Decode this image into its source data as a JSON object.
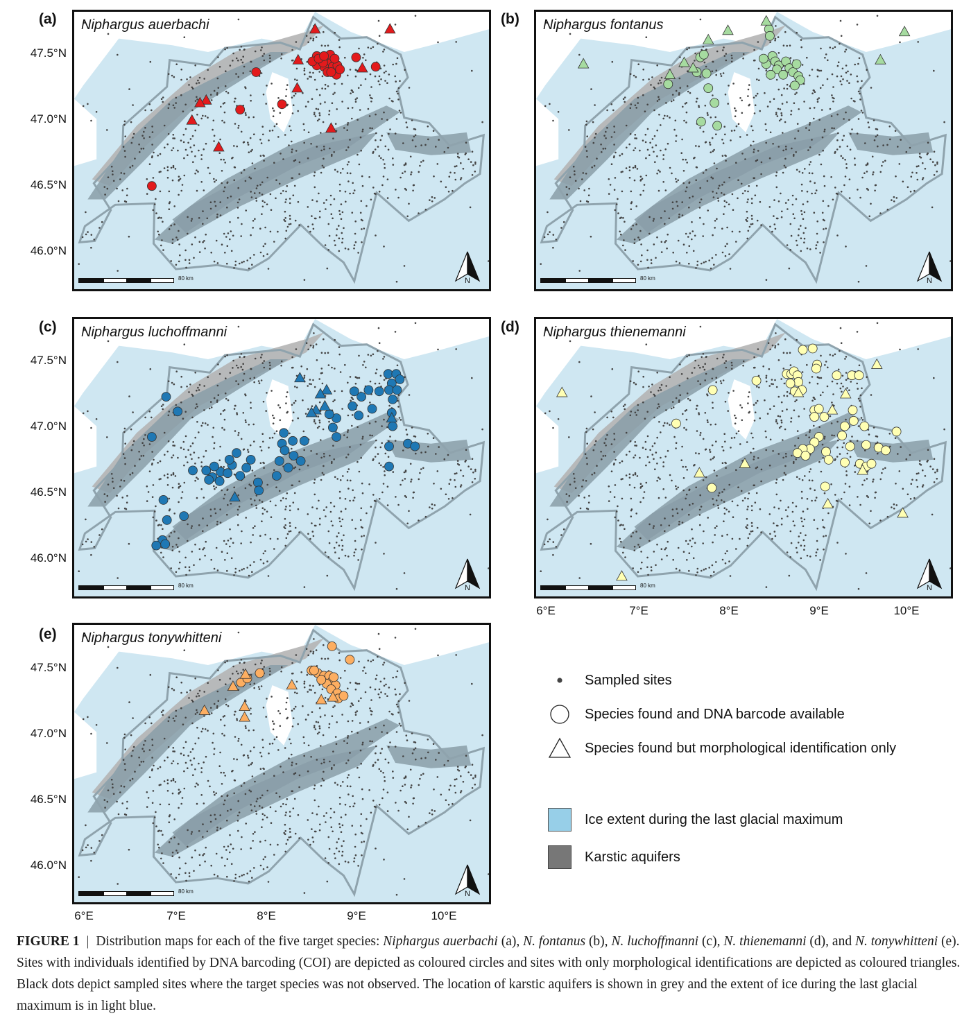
{
  "figure": {
    "latitude_labels": [
      "47.5°N",
      "47.0°N",
      "46.5°N",
      "46.0°N"
    ],
    "longitude_labels": [
      "6°E",
      "7°E",
      "8°E",
      "9°E",
      "10°E"
    ],
    "scale_bar_label": "80 km",
    "north_label": "N",
    "colors": {
      "ice": "#cfe7f2",
      "karst": "#8a9ea8",
      "karst_north": "#b4b4b4",
      "border": "#8fa3ad",
      "sampled": "#444444",
      "auerbachi": "#e31a1c",
      "fontanus": "#a6dba0",
      "luchoffmanni": "#1f78b4",
      "thienemanni": "#ffffb3",
      "tonywhitteni": "#fdae61"
    },
    "panels": [
      {
        "label": "(a)",
        "species": "Niphargus auerbachi",
        "color_key": "auerbachi",
        "circles": [
          [
            8.62,
            47.52
          ],
          [
            8.67,
            47.5
          ],
          [
            8.72,
            47.48
          ],
          [
            8.75,
            47.5
          ],
          [
            8.78,
            47.47
          ],
          [
            8.7,
            47.44
          ],
          [
            8.8,
            47.44
          ],
          [
            8.74,
            47.4
          ],
          [
            8.84,
            47.38
          ],
          [
            8.62,
            47.45
          ],
          [
            8.57,
            47.48
          ],
          [
            8.85,
            47.45
          ],
          [
            8.69,
            47.47
          ],
          [
            8.77,
            47.53
          ],
          [
            8.82,
            47.5
          ],
          [
            8.64,
            47.5
          ],
          [
            8.88,
            47.42
          ],
          [
            8.78,
            47.4
          ],
          [
            8.7,
            47.52
          ],
          [
            9.06,
            47.51
          ],
          [
            9.28,
            47.44
          ],
          [
            7.94,
            47.4
          ],
          [
            8.23,
            47.16
          ],
          [
            7.76,
            47.12
          ],
          [
            6.77,
            46.55
          ]
        ],
        "triangles": [
          [
            8.6,
            47.72
          ],
          [
            9.44,
            47.72
          ],
          [
            8.41,
            47.49
          ],
          [
            9.13,
            47.43
          ],
          [
            8.4,
            47.28
          ],
          [
            7.38,
            47.19
          ],
          [
            7.22,
            47.04
          ],
          [
            7.31,
            47.17
          ],
          [
            7.52,
            46.84
          ],
          [
            8.78,
            46.98
          ]
        ]
      },
      {
        "label": "(b)",
        "species": "Niphargus fontanus",
        "color_key": "fontanus",
        "circles": [
          [
            8.51,
            47.72
          ],
          [
            8.52,
            47.67
          ],
          [
            8.55,
            47.52
          ],
          [
            8.58,
            47.48
          ],
          [
            8.62,
            47.45
          ],
          [
            8.6,
            47.42
          ],
          [
            8.67,
            47.38
          ],
          [
            8.7,
            47.48
          ],
          [
            8.74,
            47.43
          ],
          [
            8.78,
            47.4
          ],
          [
            8.82,
            47.46
          ],
          [
            8.84,
            47.37
          ],
          [
            8.86,
            47.34
          ],
          [
            8.8,
            47.3
          ],
          [
            8.48,
            47.46
          ],
          [
            8.45,
            47.5
          ],
          [
            8.53,
            47.38
          ],
          [
            7.74,
            47.51
          ],
          [
            7.78,
            47.53
          ],
          [
            7.7,
            47.4
          ],
          [
            7.81,
            47.39
          ],
          [
            7.83,
            47.28
          ],
          [
            7.38,
            47.31
          ],
          [
            7.9,
            47.17
          ],
          [
            7.75,
            47.03
          ],
          [
            7.93,
            47.0
          ]
        ],
        "triangles": [
          [
            8.48,
            47.78
          ],
          [
            6.43,
            47.46
          ],
          [
            7.83,
            47.64
          ],
          [
            8.05,
            47.71
          ],
          [
            10.03,
            47.7
          ],
          [
            9.76,
            47.49
          ],
          [
            7.56,
            47.47
          ],
          [
            7.66,
            47.43
          ],
          [
            7.4,
            47.38
          ]
        ]
      },
      {
        "label": "(c)",
        "species": "Niphargus luchoffmanni",
        "color_key": "luchoffmanni",
        "circles": [
          [
            9.42,
            47.44
          ],
          [
            9.51,
            47.44
          ],
          [
            9.55,
            47.4
          ],
          [
            9.46,
            47.37
          ],
          [
            9.43,
            47.32
          ],
          [
            9.52,
            47.32
          ],
          [
            9.47,
            47.25
          ],
          [
            9.32,
            47.31
          ],
          [
            9.2,
            47.32
          ],
          [
            9.04,
            47.31
          ],
          [
            9.12,
            47.27
          ],
          [
            9.02,
            47.2
          ],
          [
            9.09,
            47.13
          ],
          [
            9.24,
            47.18
          ],
          [
            9.46,
            47.15
          ],
          [
            9.47,
            47.05
          ],
          [
            8.84,
            47.11
          ],
          [
            8.76,
            47.14
          ],
          [
            8.8,
            47.04
          ],
          [
            8.84,
            46.97
          ],
          [
            8.48,
            46.94
          ],
          [
            8.35,
            46.94
          ],
          [
            8.36,
            46.83
          ],
          [
            8.44,
            46.79
          ],
          [
            8.25,
            47.0
          ],
          [
            8.23,
            46.92
          ],
          [
            8.26,
            46.87
          ],
          [
            8.2,
            46.79
          ],
          [
            8.3,
            46.74
          ],
          [
            8.17,
            46.68
          ],
          [
            7.88,
            46.8
          ],
          [
            7.83,
            46.74
          ],
          [
            7.76,
            46.68
          ],
          [
            7.67,
            46.76
          ],
          [
            7.72,
            46.85
          ],
          [
            7.64,
            46.8
          ],
          [
            7.54,
            46.71
          ],
          [
            7.45,
            46.67
          ],
          [
            7.38,
            46.72
          ],
          [
            7.41,
            46.65
          ],
          [
            7.53,
            46.64
          ],
          [
            7.62,
            46.7
          ],
          [
            7.96,
            46.63
          ],
          [
            7.97,
            46.57
          ],
          [
            7.23,
            46.72
          ],
          [
            7.47,
            46.75
          ],
          [
            6.93,
            47.27
          ],
          [
            7.06,
            47.16
          ],
          [
            6.77,
            46.97
          ],
          [
            6.9,
            46.5
          ],
          [
            6.94,
            46.35
          ],
          [
            7.13,
            46.38
          ],
          [
            6.89,
            46.2
          ],
          [
            6.92,
            46.17
          ],
          [
            6.82,
            46.16
          ],
          [
            9.64,
            46.92
          ],
          [
            9.72,
            46.9
          ],
          [
            9.43,
            46.9
          ],
          [
            9.43,
            46.75
          ]
        ],
        "triangles": [
          [
            8.43,
            47.41
          ],
          [
            8.73,
            47.32
          ],
          [
            8.66,
            47.29
          ],
          [
            8.71,
            47.2
          ],
          [
            8.61,
            47.17
          ],
          [
            8.56,
            47.15
          ],
          [
            9.46,
            47.11
          ],
          [
            7.7,
            46.52
          ]
        ]
      },
      {
        "label": "(d)",
        "species": "Niphargus thienemanni",
        "color_key": "thienemanni",
        "circles": [
          [
            8.89,
            47.62
          ],
          [
            9.0,
            47.63
          ],
          [
            9.05,
            47.51
          ],
          [
            9.04,
            47.48
          ],
          [
            8.71,
            47.44
          ],
          [
            8.76,
            47.44
          ],
          [
            8.79,
            47.46
          ],
          [
            8.83,
            47.43
          ],
          [
            8.84,
            47.38
          ],
          [
            8.75,
            47.37
          ],
          [
            8.88,
            47.32
          ],
          [
            8.8,
            47.31
          ],
          [
            9.27,
            47.43
          ],
          [
            9.44,
            47.43
          ],
          [
            9.52,
            47.43
          ],
          [
            9.02,
            47.17
          ],
          [
            9.07,
            47.18
          ],
          [
            9.13,
            47.12
          ],
          [
            9.02,
            47.12
          ],
          [
            9.45,
            47.17
          ],
          [
            9.46,
            47.09
          ],
          [
            9.36,
            47.05
          ],
          [
            9.58,
            47.05
          ],
          [
            9.94,
            47.01
          ],
          [
            9.33,
            46.98
          ],
          [
            9.07,
            46.97
          ],
          [
            9.02,
            46.93
          ],
          [
            8.97,
            46.88
          ],
          [
            8.89,
            46.88
          ],
          [
            8.83,
            46.85
          ],
          [
            8.92,
            46.83
          ],
          [
            9.15,
            46.86
          ],
          [
            9.42,
            46.9
          ],
          [
            9.6,
            46.91
          ],
          [
            9.74,
            46.89
          ],
          [
            9.82,
            46.87
          ],
          [
            9.18,
            46.8
          ],
          [
            9.36,
            46.78
          ],
          [
            9.53,
            46.77
          ],
          [
            9.6,
            46.75
          ],
          [
            9.66,
            46.77
          ],
          [
            9.14,
            46.6
          ],
          [
            7.47,
            47.07
          ],
          [
            7.88,
            47.32
          ],
          [
            8.37,
            47.39
          ],
          [
            7.87,
            46.59
          ]
        ],
        "triangles": [
          [
            6.19,
            47.3
          ],
          [
            8.84,
            47.3
          ],
          [
            9.22,
            47.17
          ],
          [
            9.37,
            47.29
          ],
          [
            9.72,
            47.51
          ],
          [
            9.56,
            46.72
          ],
          [
            9.17,
            46.47
          ],
          [
            10.01,
            46.4
          ],
          [
            8.24,
            46.77
          ],
          [
            7.73,
            46.7
          ],
          [
            6.86,
            45.93
          ]
        ]
      },
      {
        "label": "(e)",
        "species": "Niphargus tonywhitteni",
        "color_key": "tonywhitteni",
        "circles": [
          [
            8.79,
            47.69
          ],
          [
            8.99,
            47.59
          ],
          [
            8.56,
            47.51
          ],
          [
            8.63,
            47.49
          ],
          [
            8.7,
            47.47
          ],
          [
            8.76,
            47.47
          ],
          [
            8.79,
            47.43
          ],
          [
            8.73,
            47.41
          ],
          [
            8.83,
            47.4
          ],
          [
            8.78,
            47.37
          ],
          [
            8.85,
            47.34
          ],
          [
            8.86,
            47.3
          ],
          [
            8.92,
            47.32
          ],
          [
            8.81,
            47.46
          ],
          [
            8.67,
            47.44
          ],
          [
            8.59,
            47.51
          ],
          [
            7.98,
            47.49
          ],
          [
            7.77,
            47.42
          ],
          [
            7.84,
            47.45
          ]
        ],
        "triangles": [
          [
            8.34,
            47.4
          ],
          [
            8.67,
            47.29
          ],
          [
            8.8,
            47.31
          ],
          [
            7.82,
            47.48
          ],
          [
            7.68,
            47.39
          ],
          [
            7.81,
            47.24
          ],
          [
            7.81,
            47.16
          ],
          [
            7.36,
            47.21
          ]
        ]
      }
    ]
  },
  "legend": {
    "sampled_sites": "Sampled sites",
    "circle": "Species found and DNA barcode available",
    "triangle": "Species found but morphological identification only",
    "ice": "Ice extent during the last glacial maximum",
    "karst": "Karstic aquifers"
  },
  "caption": {
    "lead": "FIGURE 1",
    "separator": "|",
    "parts": [
      {
        "t": "Distribution maps for each of the five target species: ",
        "i": false
      },
      {
        "t": "Niphargus auerbachi",
        "i": true
      },
      {
        "t": " (a), ",
        "i": false
      },
      {
        "t": "N. fontanus",
        "i": true
      },
      {
        "t": " (b), ",
        "i": false
      },
      {
        "t": "N. luchoffmanni",
        "i": true
      },
      {
        "t": " (c), ",
        "i": false
      },
      {
        "t": "N. thienemanni",
        "i": true
      },
      {
        "t": " (d), and ",
        "i": false
      },
      {
        "t": "N. tonywhitteni",
        "i": true
      },
      {
        "t": " (e). Sites with individuals identified by DNA barcoding (COI) are depicted as coloured circles and sites with only morphological identifications are depicted as coloured triangles. Black dots depict sampled sites where the target species was not observed. The location of karstic aquifers is shown in grey and the extent of ice during the last glacial maximum is in light blue.",
        "i": false
      }
    ]
  }
}
